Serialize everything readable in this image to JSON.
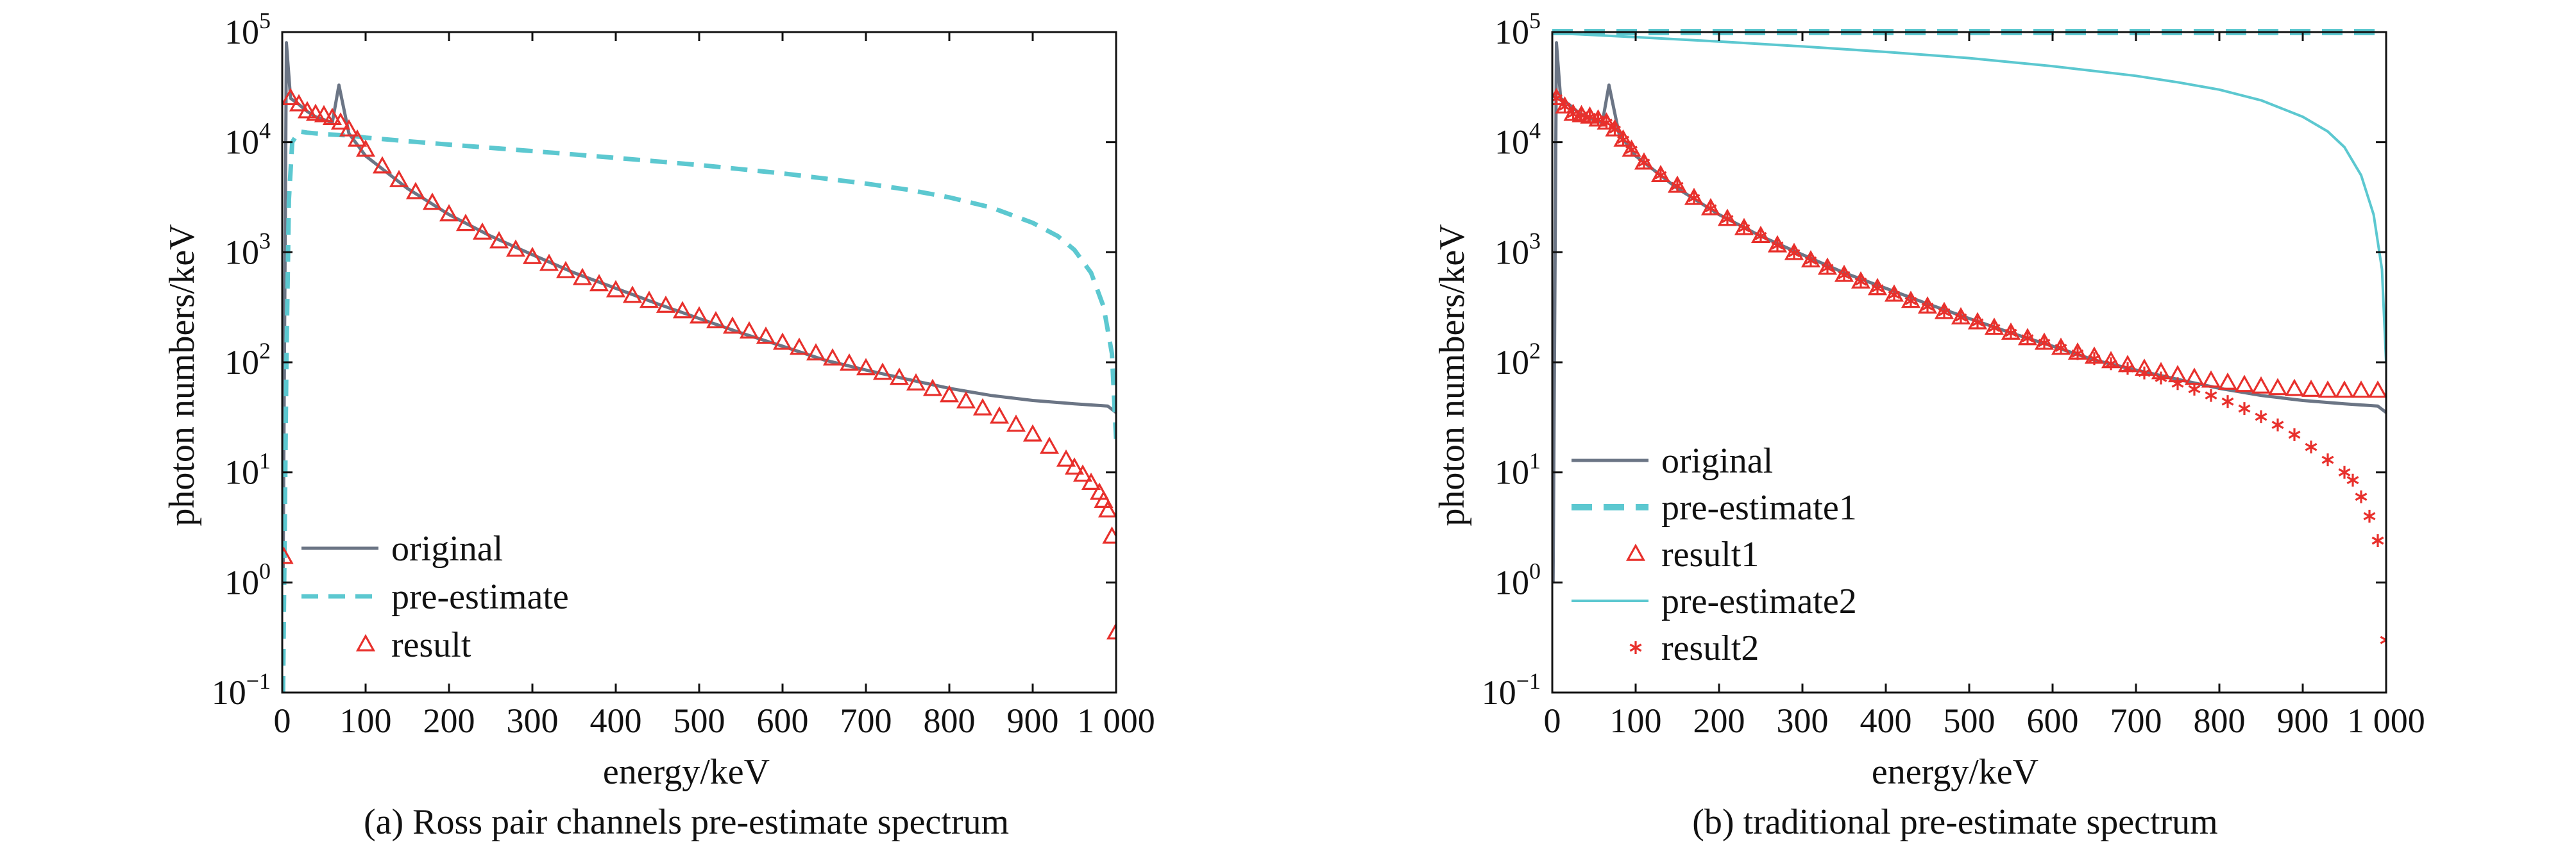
{
  "colors": {
    "original": "#6b7585",
    "pre_estimate": "#5cc8d0",
    "result": "#e8302c",
    "axes": "#111111"
  },
  "chart_data": [
    {
      "type": "line",
      "caption": "(a) Ross pair channels pre-estimate spectrum",
      "xlabel": "energy/keV",
      "ylabel": "photon numbers/keV",
      "x_ticks": [
        "0",
        "100",
        "200",
        "300",
        "400",
        "500",
        "600",
        "700",
        "800",
        "900",
        "1 000"
      ],
      "xlim": [
        0,
        1000
      ],
      "ylim": [
        0.1,
        100000
      ],
      "yscale": "log",
      "y_ticks": [
        {
          "base": "10",
          "exp": "5",
          "value": 100000
        },
        {
          "base": "10",
          "exp": "4",
          "value": 10000
        },
        {
          "base": "10",
          "exp": "3",
          "value": 1000
        },
        {
          "base": "10",
          "exp": "2",
          "value": 100
        },
        {
          "base": "10",
          "exp": "1",
          "value": 10
        },
        {
          "base": "10",
          "exp": "0",
          "value": 1
        },
        {
          "base": "10",
          "exp": "−1",
          "value": 0.1
        }
      ],
      "legend_position": "bottom-left",
      "series": [
        {
          "name": "original",
          "style": "solid-line",
          "x": [
            1,
            5,
            10,
            20,
            30,
            40,
            50,
            60,
            68,
            80,
            100,
            150,
            200,
            250,
            300,
            350,
            400,
            450,
            500,
            550,
            600,
            650,
            700,
            750,
            800,
            850,
            900,
            950,
            990,
            1000
          ],
          "y": [
            1.0,
            80000,
            25000,
            22000,
            19000,
            17000,
            16000,
            15000,
            33000,
            12000,
            7500,
            3800,
            2200,
            1400,
            950,
            650,
            470,
            340,
            250,
            185,
            140,
            105,
            85,
            70,
            58,
            50,
            45,
            42,
            40,
            35
          ]
        },
        {
          "name": "pre-estimate",
          "style": "dashed-line",
          "x": [
            1,
            3,
            5,
            8,
            12,
            20,
            30,
            50,
            80,
            100,
            150,
            200,
            300,
            400,
            500,
            600,
            700,
            750,
            800,
            850,
            900,
            930,
            950,
            970,
            985,
            995,
            1000
          ],
          "y": [
            0.1,
            3,
            100,
            3000,
            10000,
            12500,
            12200,
            11800,
            11500,
            11000,
            10200,
            9500,
            8300,
            7200,
            6200,
            5200,
            4200,
            3700,
            3150,
            2550,
            1850,
            1400,
            1050,
            650,
            320,
            120,
            20
          ]
        },
        {
          "name": "result",
          "style": "triangle-markers",
          "x": [
            2,
            10,
            20,
            30,
            40,
            50,
            60,
            70,
            80,
            90,
            100,
            120,
            140,
            160,
            180,
            200,
            220,
            240,
            260,
            280,
            300,
            320,
            340,
            360,
            380,
            400,
            420,
            440,
            460,
            480,
            500,
            520,
            540,
            560,
            580,
            600,
            620,
            640,
            660,
            680,
            700,
            720,
            740,
            760,
            780,
            800,
            820,
            840,
            860,
            880,
            900,
            920,
            940,
            950,
            960,
            970,
            980,
            985,
            990,
            995,
            1000
          ],
          "y": [
            1.7,
            25000,
            22000,
            19000,
            18000,
            17500,
            16500,
            15000,
            13000,
            10500,
            8500,
            6000,
            4500,
            3500,
            2800,
            2200,
            1800,
            1500,
            1250,
            1050,
            900,
            780,
            670,
            580,
            510,
            450,
            400,
            360,
            325,
            290,
            260,
            235,
            210,
            190,
            170,
            150,
            135,
            120,
            108,
            97,
            88,
            80,
            72,
            64,
            57,
            50,
            44,
            38,
            32,
            27,
            22,
            17,
            13,
            11,
            9.5,
            8,
            6.5,
            5.5,
            4.5,
            2.6,
            0.35
          ]
        }
      ]
    },
    {
      "type": "line",
      "caption": "(b) traditional pre-estimate spectrum",
      "xlabel": "energy/keV",
      "ylabel": "photon numbers/keV",
      "x_ticks": [
        "0",
        "100",
        "200",
        "300",
        "400",
        "500",
        "600",
        "700",
        "800",
        "900",
        "1 000"
      ],
      "xlim": [
        0,
        1000
      ],
      "ylim": [
        0.1,
        100000
      ],
      "yscale": "log",
      "y_ticks": [
        {
          "base": "10",
          "exp": "5",
          "value": 100000
        },
        {
          "base": "10",
          "exp": "4",
          "value": 10000
        },
        {
          "base": "10",
          "exp": "3",
          "value": 1000
        },
        {
          "base": "10",
          "exp": "2",
          "value": 100
        },
        {
          "base": "10",
          "exp": "1",
          "value": 10
        },
        {
          "base": "10",
          "exp": "0",
          "value": 1
        },
        {
          "base": "10",
          "exp": "−1",
          "value": 0.1
        }
      ],
      "legend_position": "bottom-left",
      "series": [
        {
          "name": "original",
          "style": "solid-line",
          "x": [
            1,
            5,
            10,
            20,
            30,
            40,
            50,
            60,
            68,
            80,
            100,
            150,
            200,
            250,
            300,
            350,
            400,
            450,
            500,
            550,
            600,
            650,
            700,
            750,
            800,
            850,
            900,
            950,
            990,
            1000
          ],
          "y": [
            1.0,
            80000,
            25000,
            22000,
            19000,
            17000,
            16000,
            15000,
            33000,
            12000,
            7500,
            3800,
            2200,
            1400,
            950,
            650,
            470,
            340,
            250,
            185,
            140,
            105,
            85,
            70,
            58,
            50,
            45,
            42,
            40,
            35
          ]
        },
        {
          "name": "pre-estimate1",
          "style": "thick-dashed-line",
          "x": [
            0,
            1000
          ],
          "y": [
            100000,
            100000
          ]
        },
        {
          "name": "result1",
          "style": "triangle-markers",
          "x": [
            5,
            15,
            25,
            35,
            45,
            55,
            65,
            75,
            85,
            95,
            110,
            130,
            150,
            170,
            190,
            210,
            230,
            250,
            270,
            290,
            310,
            330,
            350,
            370,
            390,
            410,
            430,
            450,
            470,
            490,
            510,
            530,
            550,
            570,
            590,
            610,
            630,
            650,
            670,
            690,
            710,
            730,
            750,
            770,
            790,
            810,
            830,
            850,
            870,
            890,
            910,
            930,
            950,
            970,
            990
          ],
          "y": [
            25000,
            21000,
            18000,
            17500,
            17000,
            16000,
            15000,
            13000,
            10500,
            8500,
            6500,
            5000,
            4000,
            3100,
            2500,
            2000,
            1650,
            1400,
            1150,
            980,
            840,
            720,
            620,
            540,
            470,
            410,
            360,
            320,
            285,
            255,
            230,
            205,
            185,
            165,
            150,
            135,
            122,
            112,
            102,
            94,
            87,
            81,
            76,
            72,
            68,
            65,
            62,
            60,
            58,
            57,
            56,
            55,
            55,
            55,
            55
          ]
        },
        {
          "name": "pre-estimate2",
          "style": "thin-solid-line",
          "x": [
            0,
            50,
            100,
            200,
            300,
            400,
            500,
            600,
            700,
            750,
            800,
            850,
            900,
            930,
            950,
            970,
            985,
            995,
            1000
          ],
          "y": [
            98000,
            94000,
            90000,
            82000,
            74000,
            66000,
            58000,
            49000,
            40000,
            35000,
            30000,
            24000,
            17000,
            12500,
            9000,
            5000,
            2200,
            700,
            100
          ]
        },
        {
          "name": "result2",
          "style": "asterisk-markers",
          "x": [
            5,
            15,
            25,
            35,
            45,
            55,
            65,
            75,
            85,
            95,
            110,
            130,
            150,
            170,
            190,
            210,
            230,
            250,
            270,
            290,
            310,
            330,
            350,
            370,
            390,
            410,
            430,
            450,
            470,
            490,
            510,
            530,
            550,
            570,
            590,
            610,
            630,
            650,
            670,
            690,
            710,
            730,
            750,
            770,
            790,
            810,
            830,
            850,
            870,
            890,
            910,
            930,
            950,
            960,
            970,
            980,
            990,
            1000
          ],
          "y": [
            25000,
            21000,
            18000,
            17500,
            17000,
            16000,
            15000,
            13000,
            10500,
            8500,
            6500,
            5000,
            4000,
            3100,
            2500,
            2000,
            1650,
            1400,
            1150,
            980,
            840,
            720,
            620,
            540,
            470,
            410,
            360,
            320,
            285,
            255,
            230,
            205,
            185,
            165,
            150,
            135,
            120,
            108,
            97,
            88,
            80,
            72,
            64,
            57,
            50,
            44,
            38,
            32,
            27,
            22,
            17,
            13,
            10,
            8.5,
            6,
            4,
            2.4,
            0.3
          ]
        }
      ]
    }
  ]
}
